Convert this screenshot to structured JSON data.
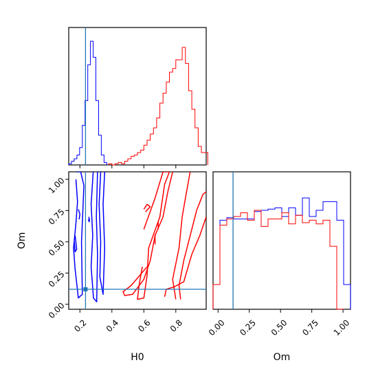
{
  "chart_data": {
    "type": "corner",
    "parameters": [
      "H0",
      "Om"
    ],
    "xlabels": {
      "H0": "H0",
      "Om": "Om"
    },
    "ylabel": "Om",
    "ranges": {
      "H0": [
        0.13,
        0.99
      ],
      "Om": [
        -0.04,
        1.06
      ]
    },
    "truths": {
      "H0": 0.235,
      "Om": 0.12
    },
    "truth_color": "#1f77b4",
    "ticks": {
      "H0": {
        "values": [
          0.2,
          0.4,
          0.6,
          0.8
        ],
        "labels": [
          "0.2",
          "0.4",
          "0.6",
          "0.8"
        ]
      },
      "Om": {
        "values": [
          0.0,
          0.25,
          0.5,
          0.75,
          1.0
        ],
        "labels": [
          "0.00",
          "0.25",
          "0.50",
          "0.75",
          "1.00"
        ]
      }
    },
    "series": [
      {
        "color": "#0000ff",
        "hist_H0": {
          "bin_edges": [
            0.13,
            0.147,
            0.164,
            0.181,
            0.198,
            0.215,
            0.232,
            0.249,
            0.266,
            0.283,
            0.3,
            0.317,
            0.334,
            0.351,
            0.368
          ],
          "counts": [
            0.01,
            0.03,
            0.05,
            0.08,
            0.14,
            0.32,
            0.52,
            0.81,
            1.0,
            0.87,
            0.52,
            0.24,
            0.08,
            0.02
          ]
        },
        "hist_Om": {
          "bin_edges": [
            -0.04,
            0.015,
            0.07,
            0.125,
            0.18,
            0.235,
            0.29,
            0.345,
            0.4,
            0.455,
            0.51,
            0.565,
            0.62,
            0.675,
            0.73,
            0.785,
            0.84,
            0.895,
            0.95,
            1.005,
            1.06
          ],
          "counts": [
            0.2,
            0.72,
            0.74,
            0.73,
            0.73,
            0.73,
            0.79,
            0.8,
            0.81,
            0.82,
            0.75,
            0.82,
            0.76,
            0.9,
            0.75,
            0.8,
            0.87,
            0.87,
            0.72,
            0.2
          ]
        },
        "contours": [
          [
            [
              0.175,
              1.0
            ],
            [
              0.185,
              0.82
            ],
            [
              0.175,
              0.65
            ],
            [
              0.16,
              0.45
            ],
            [
              0.17,
              0.28
            ],
            [
              0.19,
              0.05
            ],
            [
              0.215,
              0.08
            ],
            [
              0.21,
              0.5
            ],
            [
              0.225,
              0.95
            ],
            [
              0.205,
              1.06
            ],
            [
              0.18,
              1.06
            ]
          ],
          [
            [
              0.283,
              1.06
            ],
            [
              0.27,
              0.8
            ],
            [
              0.28,
              0.55
            ],
            [
              0.27,
              0.3
            ],
            [
              0.285,
              0.05
            ],
            [
              0.305,
              0.02
            ],
            [
              0.31,
              0.4
            ],
            [
              0.303,
              0.7
            ],
            [
              0.31,
              1.06
            ]
          ],
          [
            [
              0.33,
              1.06
            ],
            [
              0.32,
              0.8
            ],
            [
              0.33,
              0.5
            ],
            [
              0.325,
              0.22
            ],
            [
              0.345,
              0.08
            ],
            [
              0.355,
              0.45
            ],
            [
              0.345,
              0.8
            ],
            [
              0.355,
              1.06
            ]
          ],
          [
            [
              0.255,
              0.7
            ],
            [
              0.26,
              0.68
            ],
            [
              0.258,
              0.66
            ],
            [
              0.252,
              0.68
            ]
          ],
          [
            [
              0.19,
              0.76
            ],
            [
              0.2,
              0.72
            ],
            [
              0.195,
              0.68
            ]
          ],
          [
            [
              0.17,
              0.55
            ],
            [
              0.18,
              0.44
            ],
            [
              0.17,
              0.42
            ],
            [
              0.165,
              0.5
            ]
          ]
        ]
      },
      {
        "color": "#ff0000",
        "hist_H0": {
          "bin_edges": [
            0.38,
            0.4,
            0.42,
            0.44,
            0.46,
            0.48,
            0.5,
            0.52,
            0.54,
            0.56,
            0.58,
            0.6,
            0.62,
            0.64,
            0.66,
            0.68,
            0.7,
            0.72,
            0.74,
            0.76,
            0.78,
            0.8,
            0.82,
            0.84,
            0.86,
            0.88,
            0.9,
            0.92,
            0.94,
            0.96,
            0.98,
            1.0
          ],
          "counts": [
            0.01,
            0.0,
            0.01,
            0.02,
            0.01,
            0.03,
            0.05,
            0.07,
            0.08,
            0.1,
            0.12,
            0.16,
            0.2,
            0.25,
            0.3,
            0.38,
            0.5,
            0.58,
            0.67,
            0.75,
            0.78,
            0.85,
            0.85,
            0.95,
            0.82,
            0.6,
            0.45,
            0.3,
            0.15,
            0.1,
            0.1
          ]
        },
        "hist_Om": {
          "bin_edges": [
            -0.04,
            0.015,
            0.07,
            0.125,
            0.18,
            0.235,
            0.29,
            0.345,
            0.4,
            0.455,
            0.51,
            0.565,
            0.62,
            0.675,
            0.73,
            0.785,
            0.84,
            0.895,
            0.95,
            1.005
          ],
          "counts": [
            0.2,
            0.68,
            0.73,
            0.75,
            0.78,
            0.72,
            0.8,
            0.67,
            0.73,
            0.73,
            0.78,
            0.69,
            0.76,
            0.7,
            0.72,
            0.69,
            0.72,
            0.51,
            0.0
          ]
        },
        "contours": [
          [
            [
              0.59,
              0.3
            ],
            [
              0.57,
              0.15
            ],
            [
              0.56,
              0.04
            ],
            [
              0.6,
              0.05
            ],
            [
              0.62,
              0.23
            ],
            [
              0.63,
              0.45
            ],
            [
              0.7,
              0.7
            ],
            [
              0.73,
              0.96
            ],
            [
              0.76,
              1.06
            ],
            [
              0.72,
              1.06
            ],
            [
              0.67,
              0.85
            ],
            [
              0.6,
              0.6
            ]
          ],
          [
            [
              0.62,
              0.3
            ],
            [
              0.52,
              0.15
            ],
            [
              0.47,
              0.1
            ],
            [
              0.48,
              0.07
            ],
            [
              0.53,
              0.08
            ],
            [
              0.6,
              0.2
            ],
            [
              0.64,
              0.35
            ],
            [
              0.67,
              0.55
            ],
            [
              0.72,
              0.7
            ],
            [
              0.75,
              0.9
            ],
            [
              0.78,
              1.06
            ]
          ],
          [
            [
              0.8,
              0.04
            ],
            [
              0.78,
              0.2
            ],
            [
              0.82,
              0.45
            ],
            [
              0.84,
              0.7
            ],
            [
              0.86,
              0.85
            ],
            [
              0.89,
              1.06
            ]
          ],
          [
            [
              0.83,
              0.04
            ],
            [
              0.82,
              0.15
            ],
            [
              0.85,
              0.35
            ],
            [
              0.9,
              0.6
            ],
            [
              0.93,
              0.75
            ],
            [
              0.97,
              0.88
            ],
            [
              0.99,
              0.9
            ]
          ],
          [
            [
              0.73,
              0.06
            ],
            [
              0.74,
              0.12
            ],
            [
              0.79,
              0.14
            ],
            [
              0.85,
              0.18
            ],
            [
              0.9,
              0.4
            ],
            [
              0.95,
              0.55
            ],
            [
              0.99,
              0.7
            ]
          ],
          [
            [
              0.6,
              0.76
            ],
            [
              0.62,
              0.8
            ],
            [
              0.64,
              0.78
            ],
            [
              0.61,
              0.74
            ]
          ],
          [
            [
              0.67,
              0.56
            ],
            [
              0.67,
              0.48
            ]
          ],
          [
            [
              0.69,
              0.66
            ],
            [
              0.69,
              0.6
            ]
          ]
        ]
      }
    ]
  }
}
